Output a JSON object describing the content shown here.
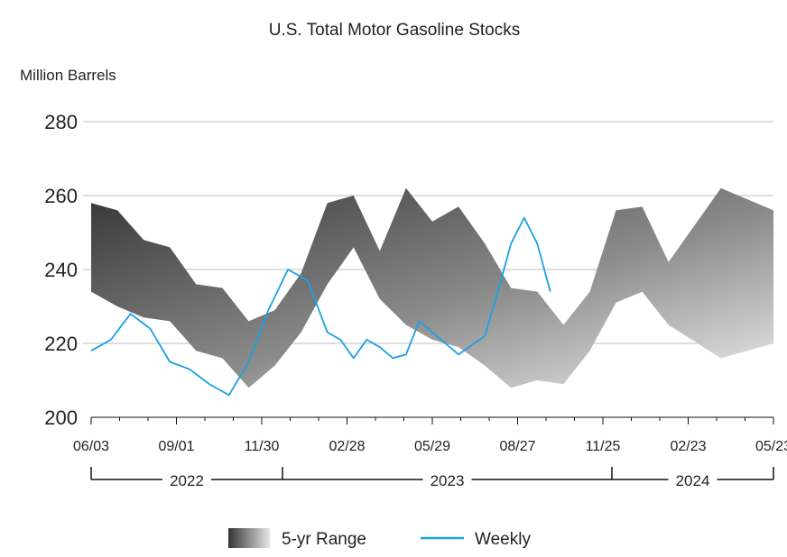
{
  "chart_data": {
    "type": "area",
    "title": "U.S. Total Motor Gasoline Stocks",
    "ylabel": "Million Barrels",
    "ylim": [
      200,
      280
    ],
    "yticks": [
      200,
      220,
      240,
      260,
      280
    ],
    "xtick_labels": [
      "06/03",
      "09/01",
      "11/30",
      "02/28",
      "05/29",
      "08/27",
      "11/25",
      "02/23",
      "05/23"
    ],
    "year_labels": [
      "2022",
      "2023",
      "2024"
    ],
    "grid": true,
    "legend_position": "bottom",
    "colors": {
      "weekly": "#1ba1e2",
      "range_dark": "#3a3a3a",
      "range_light": "#e6e6e6",
      "grid": "#bdbdbd"
    },
    "x": [
      0,
      4,
      8,
      12,
      16,
      20,
      24,
      28,
      32,
      36,
      40,
      44,
      48,
      52,
      56,
      60,
      64,
      68,
      72,
      76,
      80,
      84,
      88,
      96,
      104
    ],
    "series": [
      {
        "name": "5-yr Range",
        "kind": "band",
        "upper": [
          258,
          256,
          248,
          246,
          236,
          235,
          226,
          229,
          239,
          258,
          260,
          245,
          262,
          253,
          257,
          247,
          235,
          234,
          225,
          234,
          256,
          257,
          242,
          262,
          256
        ],
        "lower": [
          234,
          230,
          227,
          226,
          218,
          216,
          208,
          214,
          223,
          236,
          246,
          232,
          225,
          221,
          219,
          214,
          208,
          210,
          209,
          218,
          231,
          234,
          225,
          216,
          220
        ]
      },
      {
        "name": "Weekly",
        "kind": "line",
        "values": [
          218,
          221,
          228,
          224,
          215,
          213,
          209,
          206,
          215,
          229,
          240,
          237,
          223,
          221,
          216,
          221,
          219,
          216,
          217,
          226,
          223,
          217,
          222,
          234,
          247,
          254,
          247,
          234
        ],
        "x": [
          0,
          3,
          6,
          9,
          12,
          15,
          18,
          21,
          24,
          27,
          30,
          33,
          36,
          38,
          40,
          42,
          44,
          46,
          48,
          50,
          52,
          56,
          60,
          62,
          64,
          66,
          68,
          70
        ]
      }
    ]
  },
  "legend": {
    "range_label": "5-yr Range",
    "weekly_label": "Weekly"
  }
}
